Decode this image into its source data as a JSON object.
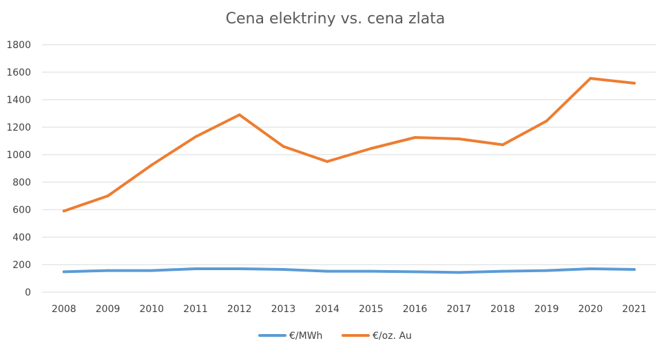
{
  "chart_data": {
    "type": "line",
    "title": "Cena elektriny vs. cena zlata",
    "xlabel": "",
    "ylabel": "",
    "ylim": [
      0,
      1800
    ],
    "yticks": [
      0,
      200,
      400,
      600,
      800,
      1000,
      1200,
      1400,
      1600,
      1800
    ],
    "grid": true,
    "legend_position": "bottom",
    "categories": [
      "2008",
      "2009",
      "2010",
      "2011",
      "2012",
      "2013",
      "2014",
      "2015",
      "2016",
      "2017",
      "2018",
      "2019",
      "2020",
      "2021"
    ],
    "series": [
      {
        "name": "€/MWh",
        "color": "#5b9bd5",
        "values": [
          148,
          157,
          157,
          170,
          170,
          165,
          152,
          152,
          148,
          143,
          152,
          157,
          170,
          165
        ]
      },
      {
        "name": "€/oz. Au",
        "color": "#ed7d31",
        "values": [
          590,
          700,
          925,
          1130,
          1290,
          1060,
          950,
          1045,
          1125,
          1115,
          1072,
          1245,
          1555,
          1520
        ]
      }
    ]
  }
}
